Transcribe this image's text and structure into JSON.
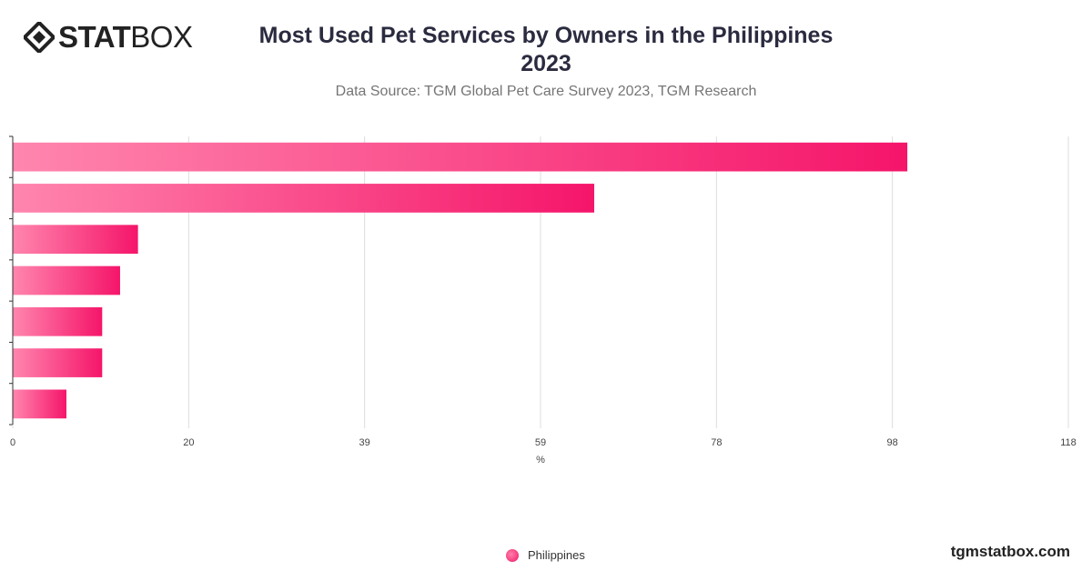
{
  "header": {
    "logo_bold": "STAT",
    "logo_light": "BOX",
    "title_line1": "Most Used Pet Services by Owners in the Philippines",
    "title_line2": "2023",
    "subtitle": "Data Source: TGM Global Pet Care Survey 2023, TGM Research"
  },
  "chart_data": {
    "type": "bar",
    "orientation": "horizontal",
    "xlabel": "%",
    "xlim": [
      0,
      118
    ],
    "xticks": [
      "0",
      "20",
      "39",
      "59",
      "78",
      "98",
      "118"
    ],
    "grid": true,
    "legend_position": "bottom",
    "series": [
      {
        "name": "Philippines",
        "values": [
          100,
          65,
          14,
          12,
          10,
          10,
          6
        ]
      }
    ],
    "colors": {
      "bar_start": "#ff86ae",
      "bar_end": "#f5156a",
      "grid": "#dddddd",
      "axis": "#333333"
    }
  },
  "footer": {
    "legend_label": "Philippines",
    "site": "tgmstatbox.com"
  }
}
